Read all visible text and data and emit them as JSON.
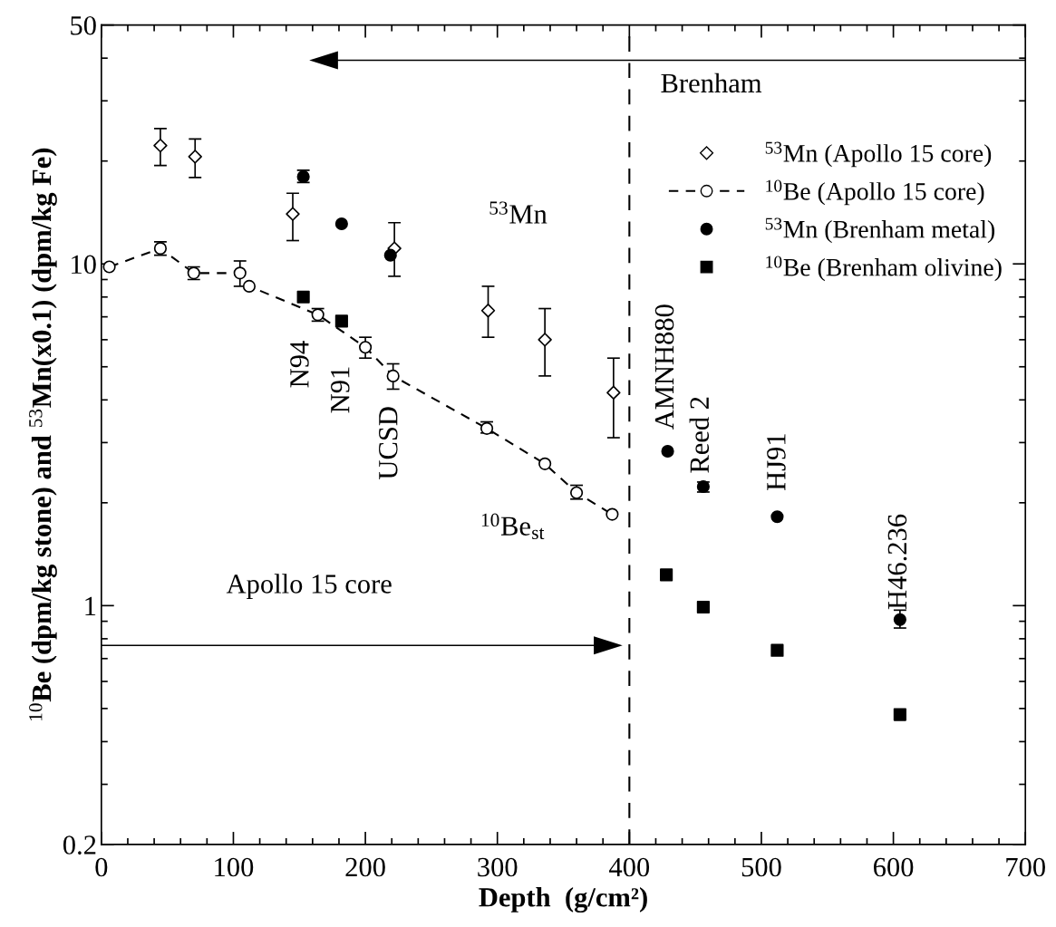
{
  "chart_data": {
    "type": "scatter",
    "xlabel": "Depth  (g/cm²)",
    "ylabel": "$^{10}$Be (dpm/kg stone) and $^{53}$Mn(x0.1) (dpm/kg Fe)",
    "log": "y",
    "xlim": [
      0,
      700
    ],
    "xticks": [
      0,
      {
        "value": 20,
        "label": null
      },
      {
        "value": 40,
        "label": null
      },
      {
        "value": 60,
        "label": null
      },
      {
        "value": 80,
        "label": null
      },
      100,
      {
        "value": 120,
        "label": null
      },
      {
        "value": 140,
        "label": null
      },
      {
        "value": 160,
        "label": null
      },
      {
        "value": 180,
        "label": null
      },
      200,
      {
        "value": 220,
        "label": null
      },
      {
        "value": 240,
        "label": null
      },
      {
        "value": 260,
        "label": null
      },
      {
        "value": 280,
        "label": null
      },
      300,
      {
        "value": 320,
        "label": null
      },
      {
        "value": 340,
        "label": null
      },
      {
        "value": 360,
        "label": null
      },
      {
        "value": 380,
        "label": null
      },
      400,
      {
        "value": 420,
        "label": null
      },
      {
        "value": 440,
        "label": null
      },
      {
        "value": 460,
        "label": null
      },
      {
        "value": 480,
        "label": null
      },
      500,
      {
        "value": 520,
        "label": null
      },
      {
        "value": 540,
        "label": null
      },
      {
        "value": 560,
        "label": null
      },
      {
        "value": 580,
        "label": null
      },
      600,
      {
        "value": 620,
        "label": null
      },
      {
        "value": 640,
        "label": null
      },
      {
        "value": 660,
        "label": null
      },
      {
        "value": 680,
        "label": null
      },
      700
    ],
    "ylim": [
      0.2,
      50
    ],
    "yticks": [
      0.2,
      {
        "value": 0.3,
        "label": null
      },
      {
        "value": 0.4,
        "label": null
      },
      {
        "value": 0.5,
        "label": null
      },
      {
        "value": 0.6,
        "label": null
      },
      {
        "value": 0.7,
        "label": null
      },
      {
        "value": 0.8,
        "label": null
      },
      {
        "value": 0.9,
        "label": null
      },
      1,
      {
        "value": 2,
        "label": null
      },
      {
        "value": 3,
        "label": null
      },
      {
        "value": 4,
        "label": null
      },
      {
        "value": 5,
        "label": null
      },
      {
        "value": 6,
        "label": null
      },
      {
        "value": 7,
        "label": null
      },
      {
        "value": 8,
        "label": null
      },
      {
        "value": 9,
        "label": null
      },
      10,
      {
        "value": 20,
        "label": null
      },
      {
        "value": 30,
        "label": null
      },
      {
        "value": 40,
        "label": null
      },
      50
    ],
    "grid": false,
    "legend": "top right",
    "series": [
      {
        "name": "$^{53}$Mn (Apollo 15 core)",
        "marker": "diamond",
        "color": "#000000",
        "x": [
          44.7,
          71,
          145,
          222,
          293,
          336,
          388
        ],
        "values": [
          22.2,
          20.6,
          14.0,
          11.1,
          7.3,
          6.0,
          4.2
        ],
        "errors": [
          [
            19.4,
            24.9
          ],
          [
            17.9,
            23.2
          ],
          [
            11.7,
            16.1
          ],
          [
            9.2,
            13.2
          ],
          [
            6.1,
            8.6
          ],
          [
            4.7,
            7.4
          ],
          [
            3.1,
            5.3
          ]
        ]
      },
      {
        "name": "$^{10}$Be (Apollo 15 core)",
        "type": "line",
        "marker": "circle",
        "line_style": "dashed",
        "color": "#000000",
        "x": [
          6,
          44.7,
          70,
          105,
          112,
          164,
          200,
          221,
          292,
          336,
          360,
          387
        ],
        "values": [
          9.8,
          11.1,
          9.4,
          9.4,
          8.6,
          7.1,
          5.7,
          4.7,
          3.3,
          2.6,
          2.14,
          1.85
        ],
        "errors": [
          null,
          [
            10.6,
            11.6
          ],
          [
            9.0,
            9.8
          ],
          [
            8.6,
            10.2
          ],
          null,
          [
            6.8,
            7.4
          ],
          [
            5.3,
            6.1
          ],
          [
            4.3,
            5.1
          ],
          [
            3.2,
            3.45
          ],
          null,
          [
            2.05,
            2.25
          ],
          null
        ]
      },
      {
        "name": "$^{53}$Mn (Brenham metal)",
        "marker": "circle",
        "color": "#000000",
        "x": [
          153,
          182,
          219,
          429,
          456,
          512,
          605
        ],
        "values": [
          18.0,
          13.1,
          10.6,
          2.83,
          2.23,
          1.82,
          0.91
        ],
        "errors": [
          [
            17.3,
            18.8
          ],
          null,
          null,
          null,
          [
            2.15,
            2.3
          ],
          null,
          [
            0.86,
            0.97
          ]
        ]
      },
      {
        "name": "$^{10}$Be (Brenham olivine)",
        "marker": "square",
        "color": "#000000",
        "x": [
          153,
          182,
          428,
          456,
          512,
          605
        ],
        "values": [
          8.0,
          6.8,
          1.23,
          0.99,
          0.74,
          0.48
        ]
      }
    ],
    "ref_lines": [
      {
        "axis": "x",
        "value": 400,
        "line_style": "dashed",
        "color": "#000000"
      }
    ],
    "annotations": [
      "Apollo 15 core",
      "Brenham",
      "$^{53}$Mn",
      "$^{10}$Be$_{st}$",
      "N94",
      "N91",
      "UCSD",
      "AMNH880",
      "Reed 2",
      "HJ91",
      "H46.236"
    ]
  }
}
